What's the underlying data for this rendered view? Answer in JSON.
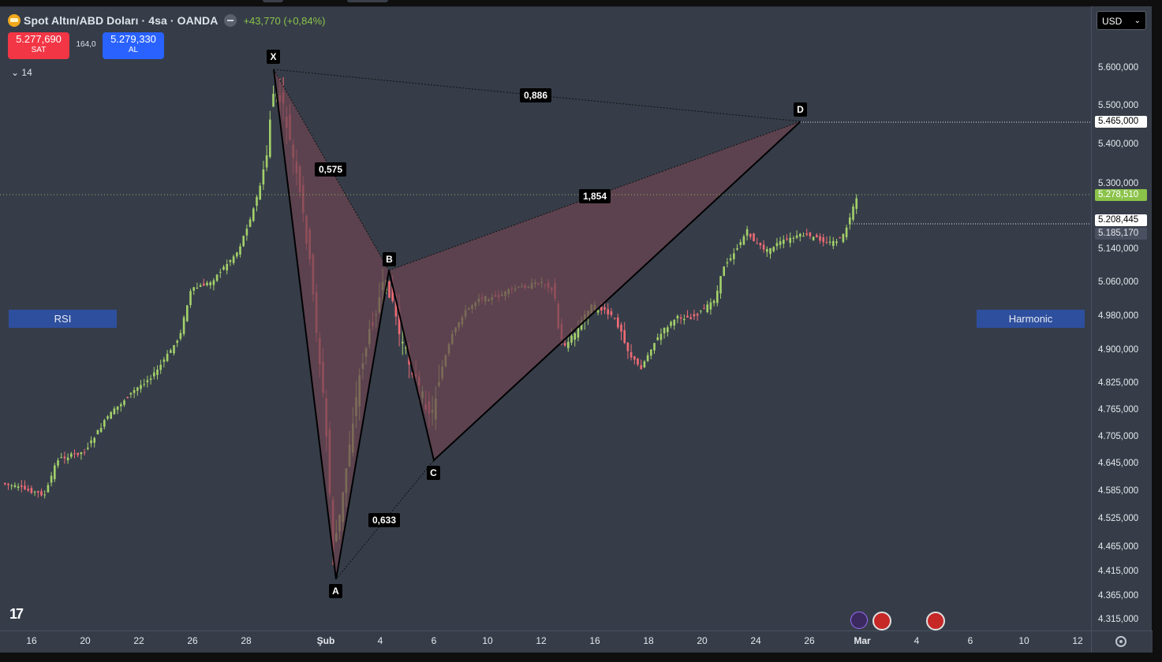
{
  "symbol": {
    "title": "Spot Altın/ABD Doları · 4sa · OANDA",
    "change": "+43,770 (+0,84%)",
    "icon": "gold-bar-icon"
  },
  "trade": {
    "sell_price": "5.277,690",
    "sell_label": "SAT",
    "spread": "164,0",
    "buy_price": "5.279,330",
    "buy_label": "AL"
  },
  "indicators": {
    "count": "14"
  },
  "buttons": {
    "rsi": "RSI",
    "harmonic": "Harmonic"
  },
  "currency": {
    "selected": "USD"
  },
  "price_axis": {
    "ticks": [
      "5.600,000",
      "5.500,000",
      "5.400,000",
      "5.300,000",
      "5.140,000",
      "5.060,000",
      "4.980,000",
      "4.900,000",
      "4.825,000",
      "4.765,000",
      "4.705,000",
      "4.645,000",
      "4.585,000",
      "4.525,000",
      "4.465,000",
      "4.415,000",
      "4.365,000",
      "4.315,000"
    ],
    "tag_d": "5.465,000",
    "tag_current": "5.278,510",
    "tag_high": "5.208,445",
    "tag_low": "5.185,170"
  },
  "time_axis": {
    "labels": [
      "16",
      "20",
      "22",
      "26",
      "28",
      "Şub",
      "4",
      "6",
      "10",
      "12",
      "16",
      "18",
      "20",
      "24",
      "26",
      "Mar",
      "4",
      "6",
      "10",
      "12"
    ]
  },
  "pattern": {
    "points": {
      "X": "X",
      "A": "A",
      "B": "B",
      "C": "C",
      "D": "D"
    },
    "ratios": {
      "xb": "0,575",
      "xd": "0,886",
      "bd": "1,854",
      "ac": "0,633"
    }
  },
  "colors": {
    "bull": "#a4d16a",
    "bear": "#ef6b74",
    "pane": "#363d49",
    "pattern_fill": "#6b4450"
  },
  "chart_data": {
    "type": "candlestick",
    "series": [
      {
        "name": "",
        "values": []
      }
    ]
  }
}
